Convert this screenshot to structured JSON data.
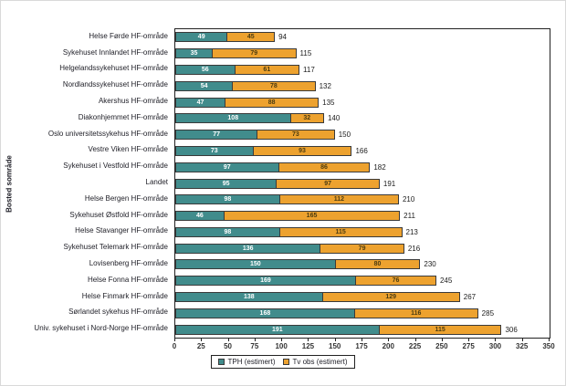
{
  "chart_data": {
    "type": "bar",
    "orientation": "horizontal",
    "stacked": true,
    "title": "",
    "ylabel": "Bosted sområde",
    "xlabel": "",
    "xlim": [
      0,
      350
    ],
    "x_ticks": [
      0,
      25,
      50,
      75,
      100,
      125,
      150,
      175,
      200,
      225,
      250,
      275,
      300,
      325,
      350
    ],
    "grid": false,
    "legend_position": "bottom-center",
    "categories": [
      "Helse Førde HF-område",
      "Sykehuset Innlandet HF-område",
      "Helgelandssykehuset HF-område",
      "Nordlandssykehuset HF-område",
      "Akershus HF-område",
      "Diakonhjemmet HF-område",
      "Oslo universitetssykehus HF-område",
      "Vestre Viken HF-område",
      "Sykehuset i Vestfold HF-område",
      "Landet",
      "Helse Bergen HF-område",
      "Sykehuset Østfold HF-område",
      "Helse Stavanger HF-område",
      "Sykehuset Telemark HF-område",
      "Lovisenberg HF-område",
      "Helse Fonna HF-område",
      "Helse Finmark HF-område",
      "Sørlandet sykehus HF-område",
      "Univ. sykehuset i Nord-Norge HF-område"
    ],
    "series": [
      {
        "name": "TPH (estimert)",
        "color": "#418c8c",
        "values": [
          49,
          35,
          56,
          54,
          47,
          108,
          77,
          73,
          97,
          95,
          98,
          46,
          98,
          136,
          150,
          169,
          138,
          168,
          191
        ]
      },
      {
        "name": "Tv obs (estimert)",
        "color": "#eda22f",
        "values": [
          45,
          79,
          61,
          78,
          88,
          32,
          73,
          93,
          86,
          97,
          112,
          165,
          115,
          79,
          80,
          76,
          129,
          116,
          115
        ]
      }
    ],
    "totals": [
      94,
      115,
      117,
      132,
      135,
      140,
      150,
      166,
      182,
      191,
      210,
      211,
      213,
      216,
      230,
      245,
      267,
      285,
      306
    ]
  },
  "colors": {
    "tph_fill": "#418c8c",
    "tv_fill": "#eda22f",
    "segment_border": "#3a3a3a",
    "plot_border": "#222222",
    "text": "#22222a"
  }
}
